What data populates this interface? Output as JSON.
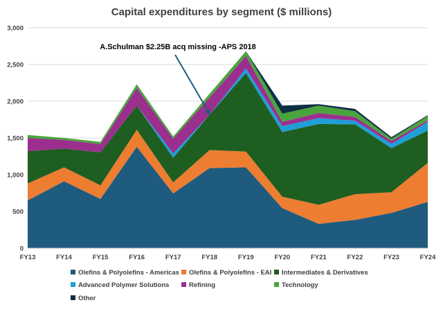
{
  "chart_data": {
    "type": "area",
    "stacked": true,
    "title": "Capital expenditures by segment ($ millions)",
    "categories": [
      "FY13",
      "FY14",
      "FY15",
      "FY16",
      "FY17",
      "FY18",
      "FY19",
      "FY20",
      "FY21",
      "FY22",
      "FY23",
      "FY24"
    ],
    "ylim": [
      0,
      3000
    ],
    "yticks": [
      0,
      500,
      1000,
      1500,
      2000,
      2500,
      3000
    ],
    "ytick_labels": [
      "0",
      "500",
      "1,000",
      "1,500",
      "2,000",
      "2,500",
      "3,000"
    ],
    "grid": true,
    "legend_position": "bottom",
    "series": [
      {
        "name": "Olefins & Polyolefins - Americas",
        "color": "#1f5b7f",
        "values": [
          650,
          910,
          670,
          1380,
          745,
          1090,
          1100,
          545,
          330,
          385,
          480,
          630
        ]
      },
      {
        "name": "Olefins & Polyolefins - EAI",
        "color": "#ed7d31",
        "values": [
          230,
          190,
          185,
          230,
          150,
          245,
          215,
          155,
          260,
          350,
          280,
          530
        ]
      },
      {
        "name": "Intermediates & Derivatives",
        "color": "#1e5e20",
        "values": [
          440,
          255,
          450,
          330,
          335,
          480,
          1070,
          880,
          1100,
          950,
          600,
          440
        ]
      },
      {
        "name": "Advanced Polymer Solutions",
        "color": "#1f9ed7",
        "values": [
          0,
          0,
          0,
          0,
          60,
          0,
          60,
          80,
          80,
          50,
          60,
          120
        ]
      },
      {
        "name": "Refining",
        "color": "#9b2f8e",
        "values": [
          180,
          120,
          110,
          240,
          200,
          235,
          170,
          60,
          70,
          50,
          40,
          20
        ]
      },
      {
        "name": "Technology",
        "color": "#4aa43c",
        "values": [
          40,
          25,
          30,
          50,
          30,
          50,
          65,
          110,
          100,
          80,
          30,
          60
        ]
      },
      {
        "name": "Other",
        "color": "#0f2f45",
        "values": [
          0,
          0,
          0,
          0,
          0,
          0,
          0,
          110,
          20,
          30,
          20,
          10
        ]
      }
    ],
    "annotation": "A.Schulman $2.25B acq missing -APS 2018"
  }
}
